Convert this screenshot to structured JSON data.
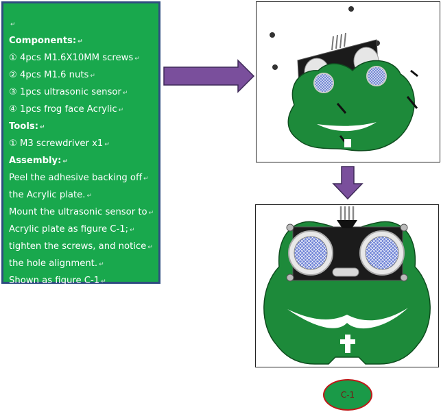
{
  "instructions": {
    "components_heading": "Components:",
    "items": [
      "① 4pcs M1.6X10MM screws",
      "② 4pcs M1.6 nuts",
      "③ 1pcs ultrasonic sensor",
      "④ 1pcs frog face Acrylic"
    ],
    "tools_heading": "Tools:",
    "tools": [
      "① M3 screwdriver x1"
    ],
    "assembly_heading": "Assembly:",
    "assembly_lines": [
      "Peel the adhesive backing off",
      "the Acrylic plate.",
      "Mount the ultrasonic sensor to",
      "Acrylic plate as figure C-1;",
      "tighten the screws, and notice",
      "the hole alignment.",
      "Shown as figure C-1"
    ]
  },
  "figure_label": "C-1",
  "colors": {
    "panel_green": "#19a84d",
    "panel_border": "#2f4d80",
    "arrow_purple": "#7a4f9c",
    "frog_green": "#1d8a3a",
    "label_green": "#1a9a48",
    "label_border": "#c01818"
  }
}
